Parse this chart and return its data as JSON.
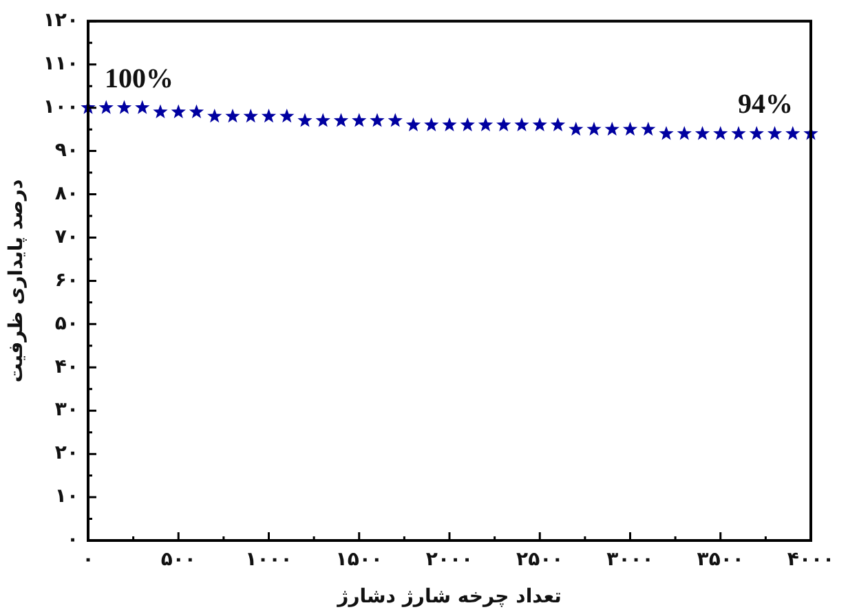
{
  "chart_data": {
    "type": "scatter",
    "xlabel": "تعداد چرخه شارژ دشارژ",
    "ylabel": "درصد پایداری ظرفیت",
    "x": [
      0,
      100,
      200,
      300,
      400,
      500,
      600,
      700,
      800,
      900,
      1000,
      1100,
      1200,
      1300,
      1400,
      1500,
      1600,
      1700,
      1800,
      1900,
      2000,
      2100,
      2200,
      2300,
      2400,
      2500,
      2600,
      2700,
      2800,
      2900,
      3000,
      3100,
      3200,
      3300,
      3400,
      3500,
      3600,
      3700,
      3800,
      3900,
      4000
    ],
    "series": [
      {
        "color": "#0000a0",
        "values": [
          100,
          100,
          100,
          100,
          99,
          99,
          99,
          98,
          98,
          98,
          98,
          98,
          97,
          97,
          97,
          97,
          97,
          97,
          96,
          96,
          96,
          96,
          96,
          96,
          96,
          96,
          96,
          95,
          95,
          95,
          95,
          95,
          94,
          94,
          94,
          94,
          94,
          94,
          94,
          94,
          94
        ]
      }
    ],
    "xlim": [
      0,
      4000
    ],
    "ylim": [
      0,
      120
    ],
    "xticks": [
      {
        "value": 0,
        "label": "۰"
      },
      {
        "value": 500,
        "label": "۵۰۰"
      },
      {
        "value": 1000,
        "label": "۱۰۰۰"
      },
      {
        "value": 1500,
        "label": "۱۵۰۰"
      },
      {
        "value": 2000,
        "label": "۲۰۰۰"
      },
      {
        "value": 2500,
        "label": "۲۵۰۰"
      },
      {
        "value": 3000,
        "label": "۳۰۰۰"
      },
      {
        "value": 3500,
        "label": "۳۵۰۰"
      },
      {
        "value": 4000,
        "label": "۴۰۰۰"
      }
    ],
    "yticks": [
      {
        "value": 0,
        "label": "۰"
      },
      {
        "value": 10,
        "label": "۱۰"
      },
      {
        "value": 20,
        "label": "۲۰"
      },
      {
        "value": 30,
        "label": "۳۰"
      },
      {
        "value": 40,
        "label": "۴۰"
      },
      {
        "value": 50,
        "label": "۵۰"
      },
      {
        "value": 60,
        "label": "۶۰"
      },
      {
        "value": 70,
        "label": "۷۰"
      },
      {
        "value": 80,
        "label": "۸۰"
      },
      {
        "value": 90,
        "label": "۹۰"
      },
      {
        "value": 100,
        "label": "۱۰۰"
      },
      {
        "value": 110,
        "label": "۱۱۰"
      },
      {
        "value": 120,
        "label": "۱۲۰"
      }
    ],
    "marker": "star",
    "annotations": [
      {
        "text": "100%",
        "x": 0,
        "y": 100
      },
      {
        "text": "94%",
        "x": 4000,
        "y": 94
      }
    ]
  }
}
